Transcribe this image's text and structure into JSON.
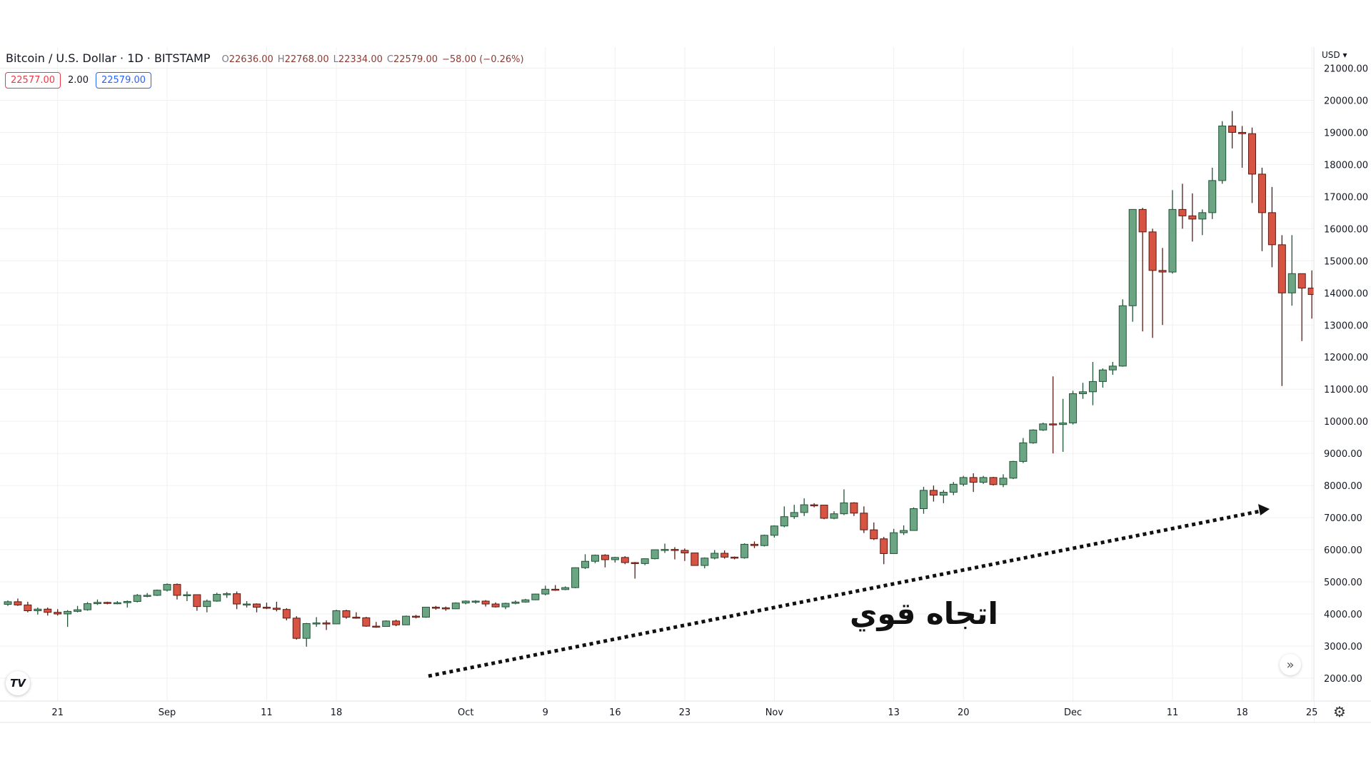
{
  "header": {
    "title": "Bitcoin / U.S. Dollar · 1D · BITSTAMP",
    "open_label": "O",
    "open": "22636.00",
    "high_label": "H",
    "high": "22768.00",
    "low_label": "L",
    "low": "22334.00",
    "close_label": "C",
    "close": "22579.00",
    "change": "−58.00 (−0.26%)"
  },
  "quote": {
    "bid": "22577.00",
    "spread": "2.00",
    "ask": "22579.00"
  },
  "currency": "USD ▾",
  "annotation": {
    "text": "اتجاه قوي"
  },
  "logo": "TV",
  "colors": {
    "up": "#6ba583",
    "up_border": "#225437",
    "down": "#d75442",
    "down_border": "#5b1a13",
    "grid": "#f0f0f0"
  },
  "chart_data": {
    "type": "candlestick",
    "title": "Bitcoin / U.S. Dollar · 1D · BITSTAMP",
    "x_start": "Aug 16",
    "ylim": [
      2000,
      21000
    ],
    "y_ticks": [
      "2000.00",
      "3000.00",
      "4000.00",
      "5000.00",
      "6000.00",
      "7000.00",
      "8000.00",
      "9000.00",
      "10000.00",
      "11000.00",
      "12000.00",
      "13000.00",
      "14000.00",
      "15000.00",
      "16000.00",
      "17000.00",
      "18000.00",
      "19000.00",
      "20000.00",
      "21000.00"
    ],
    "x_ticks": [
      {
        "label": "21",
        "day": 5
      },
      {
        "label": "Sep",
        "day": 16
      },
      {
        "label": "11",
        "day": 26
      },
      {
        "label": "18",
        "day": 33
      },
      {
        "label": "Oct",
        "day": 46
      },
      {
        "label": "9",
        "day": 54
      },
      {
        "label": "16",
        "day": 61
      },
      {
        "label": "23",
        "day": 68
      },
      {
        "label": "Nov",
        "day": 77
      },
      {
        "label": "13",
        "day": 89
      },
      {
        "label": "20",
        "day": 96
      },
      {
        "label": "Dec",
        "day": 107
      },
      {
        "label": "11",
        "day": 117
      },
      {
        "label": "18",
        "day": 124
      },
      {
        "label": "25",
        "day": 131
      }
    ],
    "ohlc": [
      [
        4300,
        4420,
        4250,
        4380
      ],
      [
        4380,
        4480,
        4250,
        4280
      ],
      [
        4280,
        4380,
        4050,
        4100
      ],
      [
        4100,
        4200,
        3980,
        4150
      ],
      [
        4150,
        4200,
        3950,
        4050
      ],
      [
        4050,
        4150,
        3950,
        4000
      ],
      [
        4000,
        4120,
        3600,
        4080
      ],
      [
        4080,
        4250,
        4050,
        4130
      ],
      [
        4130,
        4370,
        4100,
        4320
      ],
      [
        4320,
        4450,
        4280,
        4360
      ],
      [
        4360,
        4380,
        4300,
        4340
      ],
      [
        4340,
        4400,
        4300,
        4350
      ],
      [
        4350,
        4420,
        4200,
        4390
      ],
      [
        4390,
        4620,
        4360,
        4580
      ],
      [
        4580,
        4650,
        4520,
        4580
      ],
      [
        4580,
        4760,
        4560,
        4740
      ],
      [
        4740,
        4950,
        4700,
        4920
      ],
      [
        4920,
        4950,
        4450,
        4580
      ],
      [
        4580,
        4700,
        4400,
        4600
      ],
      [
        4600,
        4610,
        4100,
        4230
      ],
      [
        4230,
        4450,
        4050,
        4400
      ],
      [
        4400,
        4660,
        4380,
        4610
      ],
      [
        4610,
        4680,
        4500,
        4630
      ],
      [
        4630,
        4700,
        4150,
        4310
      ],
      [
        4310,
        4400,
        4200,
        4310
      ],
      [
        4310,
        4330,
        4050,
        4210
      ],
      [
        4210,
        4350,
        4150,
        4180
      ],
      [
        4180,
        4380,
        4080,
        4140
      ],
      [
        4140,
        4180,
        3800,
        3870
      ],
      [
        3870,
        3930,
        3200,
        3240
      ],
      [
        3240,
        3720,
        2980,
        3700
      ],
      [
        3700,
        3900,
        3600,
        3720
      ],
      [
        3720,
        3800,
        3500,
        3690
      ],
      [
        3690,
        4130,
        3680,
        4100
      ],
      [
        4100,
        4130,
        3850,
        3900
      ],
      [
        3900,
        4050,
        3850,
        3880
      ],
      [
        3880,
        3910,
        3600,
        3620
      ],
      [
        3620,
        3750,
        3570,
        3610
      ],
      [
        3610,
        3800,
        3600,
        3780
      ],
      [
        3780,
        3820,
        3620,
        3660
      ],
      [
        3660,
        3950,
        3650,
        3930
      ],
      [
        3930,
        3970,
        3860,
        3900
      ],
      [
        3900,
        4220,
        3880,
        4210
      ],
      [
        4210,
        4250,
        4130,
        4190
      ],
      [
        4190,
        4230,
        4100,
        4160
      ],
      [
        4160,
        4360,
        4150,
        4340
      ],
      [
        4340,
        4420,
        4300,
        4400
      ],
      [
        4400,
        4430,
        4320,
        4400
      ],
      [
        4400,
        4430,
        4230,
        4310
      ],
      [
        4310,
        4360,
        4200,
        4220
      ],
      [
        4220,
        4350,
        4150,
        4330
      ],
      [
        4330,
        4420,
        4300,
        4370
      ],
      [
        4370,
        4470,
        4350,
        4440
      ],
      [
        4440,
        4630,
        4430,
        4620
      ],
      [
        4620,
        4880,
        4580,
        4770
      ],
      [
        4770,
        4900,
        4720,
        4760
      ],
      [
        4760,
        4860,
        4740,
        4820
      ],
      [
        4820,
        5450,
        4800,
        5440
      ],
      [
        5440,
        5860,
        5400,
        5640
      ],
      [
        5640,
        5850,
        5580,
        5830
      ],
      [
        5830,
        5860,
        5450,
        5690
      ],
      [
        5690,
        5780,
        5600,
        5760
      ],
      [
        5760,
        5800,
        5550,
        5600
      ],
      [
        5600,
        5620,
        5100,
        5570
      ],
      [
        5570,
        5730,
        5520,
        5720
      ],
      [
        5720,
        6000,
        5700,
        6000
      ],
      [
        6000,
        6190,
        5900,
        6010
      ],
      [
        6010,
        6080,
        5700,
        5980
      ],
      [
        5980,
        6040,
        5650,
        5900
      ],
      [
        5900,
        5910,
        5500,
        5510
      ],
      [
        5510,
        5760,
        5420,
        5740
      ],
      [
        5740,
        5990,
        5700,
        5890
      ],
      [
        5890,
        5980,
        5720,
        5770
      ],
      [
        5770,
        5790,
        5700,
        5750
      ],
      [
        5750,
        6200,
        5720,
        6170
      ],
      [
        6170,
        6260,
        6050,
        6130
      ],
      [
        6130,
        6470,
        6100,
        6450
      ],
      [
        6450,
        6760,
        6380,
        6740
      ],
      [
        6740,
        7350,
        6700,
        7030
      ],
      [
        7030,
        7400,
        6960,
        7160
      ],
      [
        7160,
        7600,
        7050,
        7400
      ],
      [
        7400,
        7450,
        7320,
        7390
      ],
      [
        7390,
        7400,
        6950,
        6980
      ],
      [
        6980,
        7200,
        6950,
        7120
      ],
      [
        7120,
        7880,
        7080,
        7460
      ],
      [
        7460,
        7480,
        7050,
        7140
      ],
      [
        7140,
        7350,
        6520,
        6620
      ],
      [
        6620,
        6850,
        6300,
        6340
      ],
      [
        6340,
        6400,
        5550,
        5880
      ],
      [
        5880,
        6650,
        5880,
        6530
      ],
      [
        6530,
        6760,
        6460,
        6600
      ],
      [
        6600,
        7320,
        6600,
        7280
      ],
      [
        7280,
        7960,
        7120,
        7850
      ],
      [
        7850,
        8000,
        7500,
        7700
      ],
      [
        7700,
        7860,
        7450,
        7790
      ],
      [
        7790,
        8110,
        7700,
        8040
      ],
      [
        8040,
        8300,
        7980,
        8250
      ],
      [
        8250,
        8380,
        7800,
        8100
      ],
      [
        8100,
        8300,
        8050,
        8250
      ],
      [
        8250,
        8270,
        8000,
        8030
      ],
      [
        8030,
        8350,
        7950,
        8230
      ],
      [
        8230,
        8770,
        8200,
        8750
      ],
      [
        8750,
        9480,
        8700,
        9330
      ],
      [
        9330,
        9750,
        9300,
        9730
      ],
      [
        9730,
        9960,
        9700,
        9920
      ],
      [
        9920,
        11400,
        9000,
        9900
      ],
      [
        9900,
        10700,
        9050,
        9950
      ],
      [
        9950,
        10950,
        9900,
        10860
      ],
      [
        10860,
        11200,
        10700,
        10920
      ],
      [
        10920,
        11850,
        10500,
        11240
      ],
      [
        11240,
        11650,
        11050,
        11600
      ],
      [
        11600,
        11850,
        11450,
        11720
      ],
      [
        11720,
        13800,
        11700,
        13600
      ],
      [
        13600,
        16600,
        13100,
        16600
      ],
      [
        16600,
        16650,
        12800,
        15900
      ],
      [
        15900,
        16000,
        12600,
        14700
      ],
      [
        14700,
        15400,
        13000,
        14650
      ],
      [
        14650,
        17200,
        14600,
        16600
      ],
      [
        16600,
        17400,
        16000,
        16400
      ],
      [
        16400,
        17100,
        15600,
        16300
      ],
      [
        16300,
        16600,
        15800,
        16500
      ],
      [
        16500,
        17900,
        16300,
        17500
      ],
      [
        17500,
        19350,
        17400,
        19200
      ],
      [
        19200,
        19666,
        18500,
        19000
      ],
      [
        19000,
        19200,
        17900,
        18960
      ],
      [
        18960,
        19150,
        16800,
        17700
      ],
      [
        17700,
        17900,
        15300,
        16500
      ],
      [
        16500,
        17300,
        14800,
        15500
      ],
      [
        15500,
        15800,
        11100,
        14000
      ],
      [
        14000,
        15800,
        13600,
        14600
      ],
      [
        14600,
        14600,
        12500,
        14150
      ],
      [
        14150,
        14700,
        13200,
        13950
      ]
    ]
  }
}
